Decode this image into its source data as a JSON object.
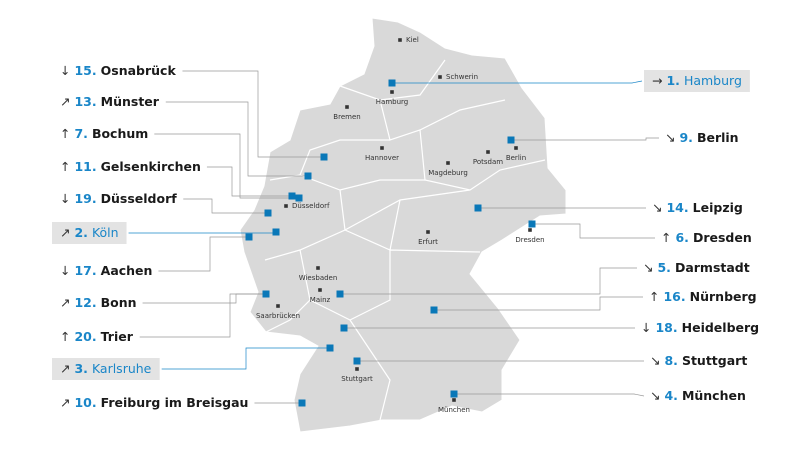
{
  "map": {
    "cities": [
      "Kiel",
      "Hamburg",
      "Schwerin",
      "Bremen",
      "Hannover",
      "Berlin",
      "Potsdam",
      "Magdeburg",
      "Düsseldorf",
      "Erfurt",
      "Dresden",
      "Wiesbaden",
      "Mainz",
      "Saarbrücken",
      "Stuttgart",
      "München"
    ],
    "rankings": [
      {
        "trend": "↓",
        "rank": "15.",
        "name": "Osnabrück"
      },
      {
        "trend": "↗",
        "rank": "13.",
        "name": "Münster"
      },
      {
        "trend": "↑",
        "rank": "7.",
        "name": "Bochum"
      },
      {
        "trend": "↑",
        "rank": "11.",
        "name": "Gelsenkirchen"
      },
      {
        "trend": "↓",
        "rank": "19.",
        "name": "Düsseldorf"
      },
      {
        "trend": "↗",
        "rank": "2.",
        "name": "Köln",
        "highlight": true
      },
      {
        "trend": "↓",
        "rank": "17.",
        "name": "Aachen"
      },
      {
        "trend": "↗",
        "rank": "12.",
        "name": "Bonn"
      },
      {
        "trend": "↑",
        "rank": "20.",
        "name": "Trier"
      },
      {
        "trend": "↗",
        "rank": "3.",
        "name": "Karlsruhe",
        "highlight": true
      },
      {
        "trend": "↗",
        "rank": "10.",
        "name": "Freiburg im Breisgau"
      },
      {
        "trend": "→",
        "rank": "1.",
        "name": "Hamburg",
        "highlight": true
      },
      {
        "trend": "↘",
        "rank": "9.",
        "name": "Berlin"
      },
      {
        "trend": "↘",
        "rank": "14.",
        "name": "Leipzig"
      },
      {
        "trend": "↑",
        "rank": "6.",
        "name": "Dresden"
      },
      {
        "trend": "↘",
        "rank": "5.",
        "name": "Darmstadt"
      },
      {
        "trend": "↑",
        "rank": "16.",
        "name": "Nürnberg"
      },
      {
        "trend": "↓",
        "rank": "18.",
        "name": "Heidelberg"
      },
      {
        "trend": "↘",
        "rank": "8.",
        "name": "Stuttgart"
      },
      {
        "trend": "↘",
        "rank": "4.",
        "name": "München"
      }
    ]
  }
}
